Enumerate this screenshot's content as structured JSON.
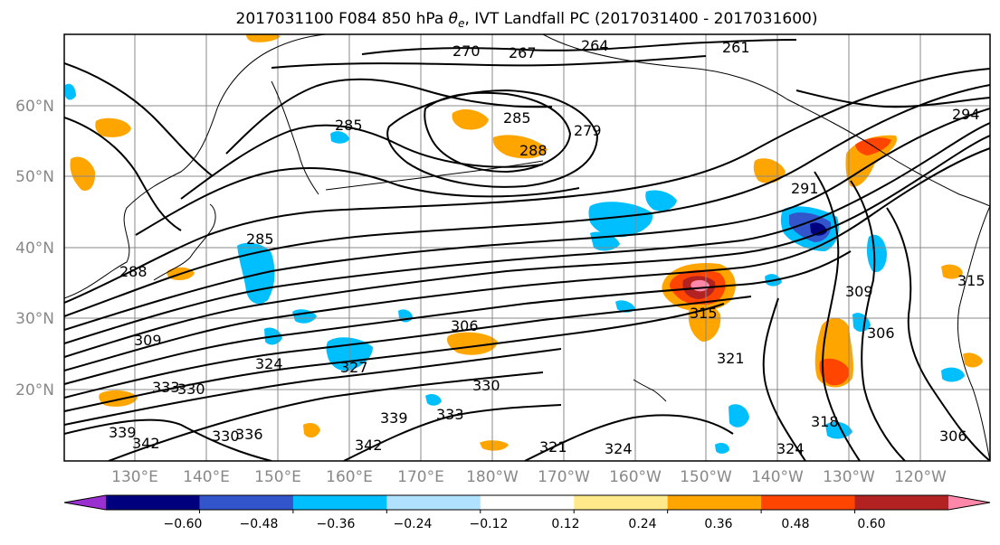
{
  "title": {
    "prefix": "2017031100 F084 850 hPa ",
    "theta_symbol": "θ",
    "theta_subscript": "e",
    "suffix": ", IVT Landfall PC (2017031400 - 2017031600)"
  },
  "lat_labels": [
    "60°N",
    "50°N",
    "40°N",
    "30°N",
    "20°N"
  ],
  "lon_labels": [
    "130°E",
    "140°E",
    "150°E",
    "160°E",
    "170°E",
    "180°W",
    "170°W",
    "160°W",
    "150°W",
    "140°W",
    "130°W",
    "120°W"
  ],
  "colorbar": {
    "tick_labels": [
      "−0.60",
      "−0.48",
      "−0.36",
      "−0.24",
      "−0.12",
      "0.12",
      "0.24",
      "0.36",
      "0.48",
      "0.60"
    ],
    "colors": [
      "#9b30d0",
      "#00007f",
      "#3355cc",
      "#00bfff",
      "#b0e2ff",
      "#ffffff",
      "#ffe98a",
      "#ffa500",
      "#ff4500",
      "#b22222",
      "#ff88aa"
    ]
  },
  "contour_labels": [
    {
      "id": "c270",
      "text": "270"
    },
    {
      "id": "c267",
      "text": "267"
    },
    {
      "id": "c264",
      "text": "264"
    },
    {
      "id": "c261",
      "text": "261"
    },
    {
      "id": "c285a",
      "text": "285"
    },
    {
      "id": "c285b",
      "text": "285"
    },
    {
      "id": "c279",
      "text": "279"
    },
    {
      "id": "c288a",
      "text": "288"
    },
    {
      "id": "c288b",
      "text": "288"
    },
    {
      "id": "c285c",
      "text": "285"
    },
    {
      "id": "c291",
      "text": "291"
    },
    {
      "id": "c294",
      "text": "294"
    },
    {
      "id": "c306a",
      "text": "306"
    },
    {
      "id": "c309a",
      "text": "309"
    },
    {
      "id": "c315a",
      "text": "315"
    },
    {
      "id": "c309b",
      "text": "309"
    },
    {
      "id": "c306b",
      "text": "306"
    },
    {
      "id": "c324a",
      "text": "324"
    },
    {
      "id": "c327",
      "text": "327"
    },
    {
      "id": "c321a",
      "text": "321"
    },
    {
      "id": "c330a",
      "text": "330"
    },
    {
      "id": "c333",
      "text": "333"
    },
    {
      "id": "c330b",
      "text": "330"
    },
    {
      "id": "c339a",
      "text": "339"
    },
    {
      "id": "c342a",
      "text": "342"
    },
    {
      "id": "c342b",
      "text": "342"
    },
    {
      "id": "c330c",
      "text": "330"
    },
    {
      "id": "c321b",
      "text": "321"
    },
    {
      "id": "c324b",
      "text": "324"
    },
    {
      "id": "c318",
      "text": "318"
    },
    {
      "id": "c315b",
      "text": "315"
    },
    {
      "id": "c306c",
      "text": "306"
    },
    {
      "id": "c339b",
      "text": "339"
    },
    {
      "id": "c336",
      "text": "336"
    },
    {
      "id": "c333b",
      "text": "333"
    },
    {
      "id": "c324c",
      "text": "324"
    }
  ]
}
